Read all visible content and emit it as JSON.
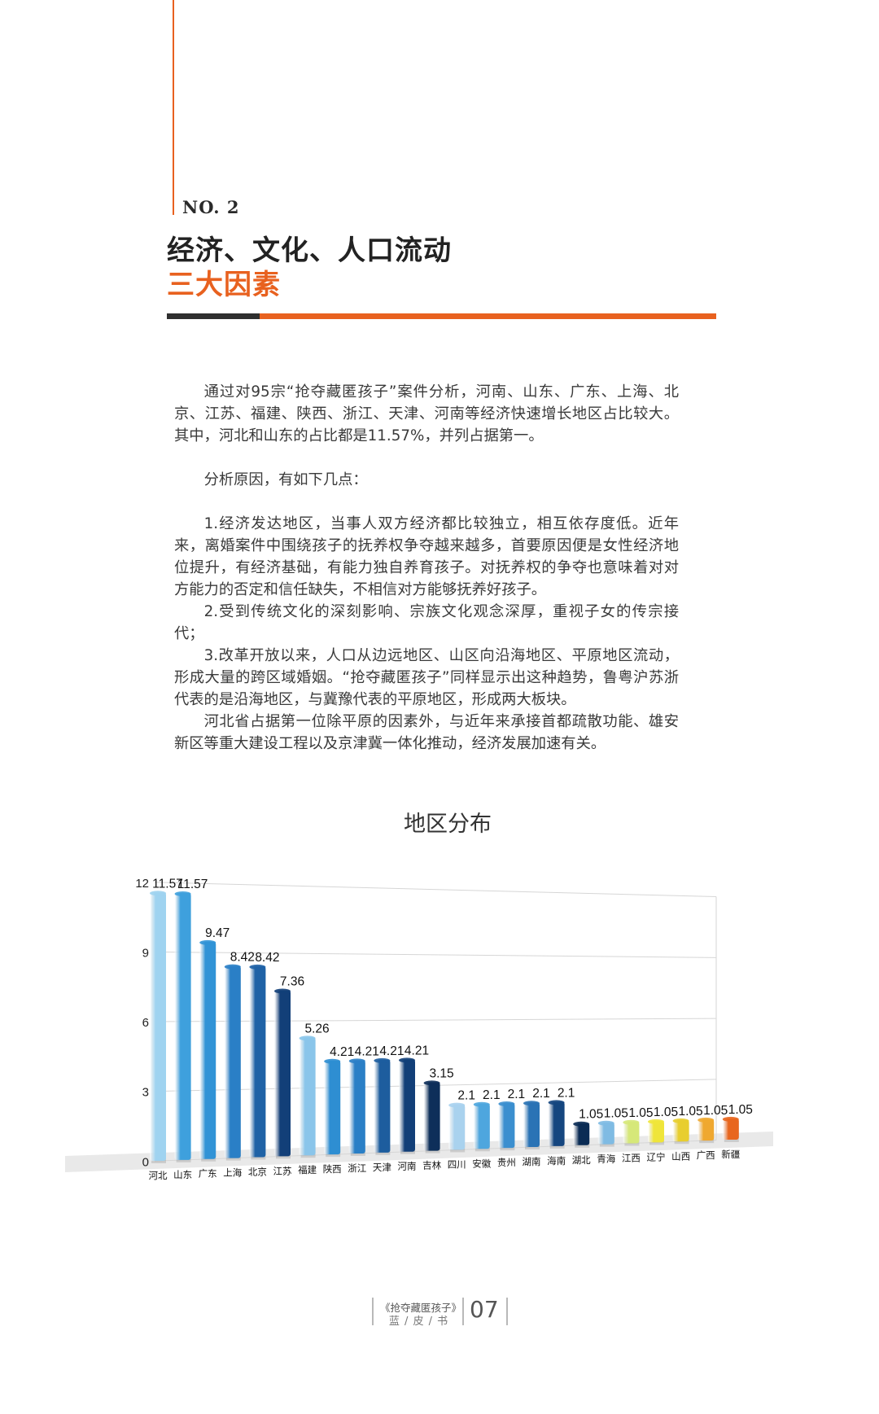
{
  "header": {
    "no": "NO. 2",
    "title_line1": "经济、文化、人口流动",
    "title_line2": "三大因素"
  },
  "body": {
    "p1": "通过对95宗“抢夺藏匿孩子”案件分析，河南、山东、广东、上海、北京、江苏、福建、陕西、浙江、天津、河南等经济快速增长地区占比较大。其中，河北和山东的占比都是11.57%，并列占据第一。",
    "p2": "分析原因，有如下几点：",
    "p3": "1.经济发达地区，当事人双方经济都比较独立，相互依存度低。近年来，离婚案件中围绕孩子的抚养权争夺越来越多，首要原因便是女性经济地位提升，有经济基础，有能力独自养育孩子。对抚养权的争夺也意味着对对方能力的否定和信任缺失，不相信对方能够抚养好孩子。",
    "p4": "2.受到传统文化的深刻影响、宗族文化观念深厚，重视子女的传宗接代；",
    "p5": "3.改革开放以来，人口从边远地区、山区向沿海地区、平原地区流动，形成大量的跨区域婚姻。“抢夺藏匿孩子”同样显示出这种趋势，鲁粤沪苏浙代表的是沿海地区，与冀豫代表的平原地区，形成两大板块。",
    "p6": "河北省占据第一位除平原的因素外，与近年来承接首都疏散功能、雄安新区等重大建设工程以及京津冀一体化推动，经济发展加速有关。"
  },
  "chart_data": {
    "type": "bar",
    "title": "地区分布",
    "categories": [
      "河北",
      "山东",
      "广东",
      "上海",
      "北京",
      "江苏",
      "福建",
      "陕西",
      "浙江",
      "天津",
      "河南",
      "吉林",
      "四川",
      "安徽",
      "贵州",
      "湖南",
      "海南",
      "湖北",
      "青海",
      "江西",
      "辽宁",
      "山西",
      "广西",
      "新疆"
    ],
    "values": [
      11.57,
      11.57,
      9.47,
      8.42,
      8.42,
      7.36,
      5.26,
      4.21,
      4.21,
      4.21,
      4.21,
      3.15,
      2.1,
      2.1,
      2.1,
      2.1,
      2.1,
      1.05,
      1.05,
      1.05,
      1.05,
      1.05,
      1.05,
      1.05
    ],
    "value_labels": [
      "11.57",
      "11.57",
      "9.47",
      "8.42",
      "8.42",
      "7.36",
      "5.26",
      "4.21",
      "4.21",
      "4.21",
      "4.21",
      "3.15",
      "2.1",
      "2.1",
      "2.1",
      "2.1",
      "2.1",
      "1.05",
      "1.05",
      "1.05",
      "1.05",
      "1.05",
      "1.05",
      "1.05"
    ],
    "yticks": [
      "0",
      "3",
      "6",
      "9",
      "12"
    ],
    "ylim": [
      0,
      12
    ],
    "grid": true,
    "colors": [
      "#9fd3f0",
      "#3ea0dd",
      "#3193d6",
      "#2a7fc6",
      "#1f62a6",
      "#123f78",
      "#8ac5ea",
      "#2e8ed2",
      "#2a7fc6",
      "#1d5d9e",
      "#123f78",
      "#0e2f5a",
      "#a9d2ee",
      "#4ea6de",
      "#3b8fcf",
      "#2a73b5",
      "#15467f",
      "#0b2c55",
      "#7fbbe3",
      "#d6e879",
      "#efe53a",
      "#e8ce2e",
      "#efa830",
      "#e8661e"
    ]
  },
  "footer": {
    "book_title": "《抢夺藏匿孩子》",
    "subtitle": "蓝 / 皮 / 书",
    "page": "07"
  }
}
